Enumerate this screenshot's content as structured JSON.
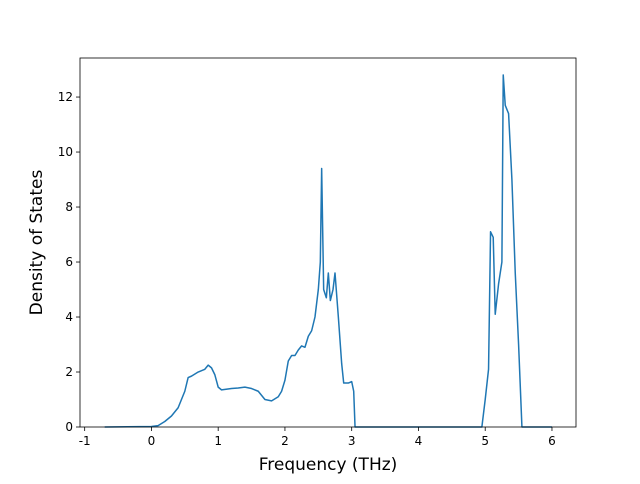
{
  "chart_data": {
    "type": "line",
    "xlabel": "Frequency (THz)",
    "ylabel": "Density of States",
    "xlim": [
      -1.07,
      6.36
    ],
    "ylim": [
      0,
      13.42
    ],
    "xticks": [
      -1,
      0,
      1,
      2,
      3,
      4,
      5,
      6
    ],
    "yticks": [
      0,
      2,
      4,
      6,
      8,
      10,
      12
    ],
    "series": [
      {
        "color": "#1f77b4",
        "x": [
          -0.7,
          0,
          0.1,
          0.2,
          0.3,
          0.4,
          0.45,
          0.5,
          0.55,
          0.6,
          0.7,
          0.8,
          0.85,
          0.9,
          0.95,
          1.0,
          1.05,
          1.2,
          1.3,
          1.4,
          1.5,
          1.6,
          1.7,
          1.8,
          1.9,
          1.95,
          2.0,
          2.05,
          2.1,
          2.15,
          2.2,
          2.25,
          2.3,
          2.35,
          2.4,
          2.45,
          2.5,
          2.53,
          2.55,
          2.58,
          2.62,
          2.65,
          2.68,
          2.72,
          2.75,
          2.8,
          2.85,
          2.88,
          2.95,
          3.0,
          3.03,
          3.05,
          4.95,
          5.0,
          5.05,
          5.08,
          5.12,
          5.15,
          5.2,
          5.25,
          5.27,
          5.3,
          5.35,
          5.4,
          5.45,
          5.5,
          5.55,
          6.0
        ],
        "values": [
          0,
          0.02,
          0.05,
          0.2,
          0.4,
          0.7,
          1.0,
          1.3,
          1.8,
          1.85,
          2.0,
          2.1,
          2.25,
          2.15,
          1.9,
          1.45,
          1.35,
          1.4,
          1.42,
          1.45,
          1.4,
          1.3,
          1.0,
          0.95,
          1.1,
          1.3,
          1.7,
          2.4,
          2.6,
          2.6,
          2.8,
          2.95,
          2.9,
          3.3,
          3.5,
          4.0,
          5.0,
          6.0,
          9.4,
          5.0,
          4.7,
          5.6,
          4.6,
          5.0,
          5.6,
          4.0,
          2.3,
          1.6,
          1.6,
          1.65,
          1.3,
          0,
          0,
          1.0,
          2.1,
          7.1,
          6.9,
          4.1,
          5.2,
          6.0,
          12.8,
          11.7,
          11.4,
          9.0,
          5.6,
          3.0,
          0,
          0
        ]
      }
    ]
  }
}
